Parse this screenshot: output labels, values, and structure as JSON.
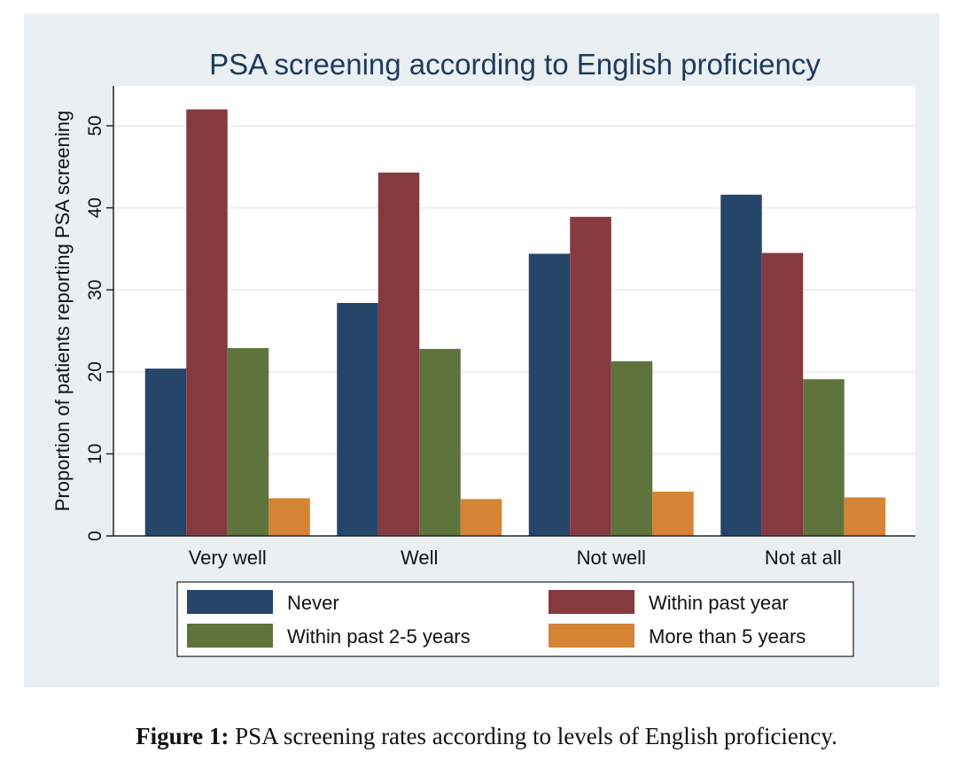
{
  "chart_data": {
    "type": "bar",
    "title": "PSA screening according to English proficiency",
    "xlabel": "",
    "ylabel": "Proportion of patients reporting PSA screening",
    "ylim": [
      0,
      55
    ],
    "yticks": [
      0,
      10,
      20,
      30,
      40,
      50
    ],
    "grid": true,
    "legend_position": "bottom",
    "categories": [
      "Very well",
      "Well",
      "Not well",
      "Not at all"
    ],
    "series": [
      {
        "name": "Never",
        "color": "#264669",
        "values": [
          20.4,
          28.4,
          34.4,
          41.6
        ]
      },
      {
        "name": "Within past year",
        "color": "#843a3e",
        "values": [
          52.0,
          44.3,
          38.9,
          34.5
        ]
      },
      {
        "name": "Within past 2-5 years",
        "color": "#5e743c",
        "values": [
          22.9,
          22.8,
          21.3,
          19.1
        ]
      },
      {
        "name": "More than 5 years",
        "color": "#d48434",
        "values": [
          4.6,
          4.5,
          5.4,
          4.7
        ]
      }
    ]
  },
  "caption": {
    "label": "Figure 1:",
    "text": " PSA screening rates according to levels of English proficiency."
  }
}
